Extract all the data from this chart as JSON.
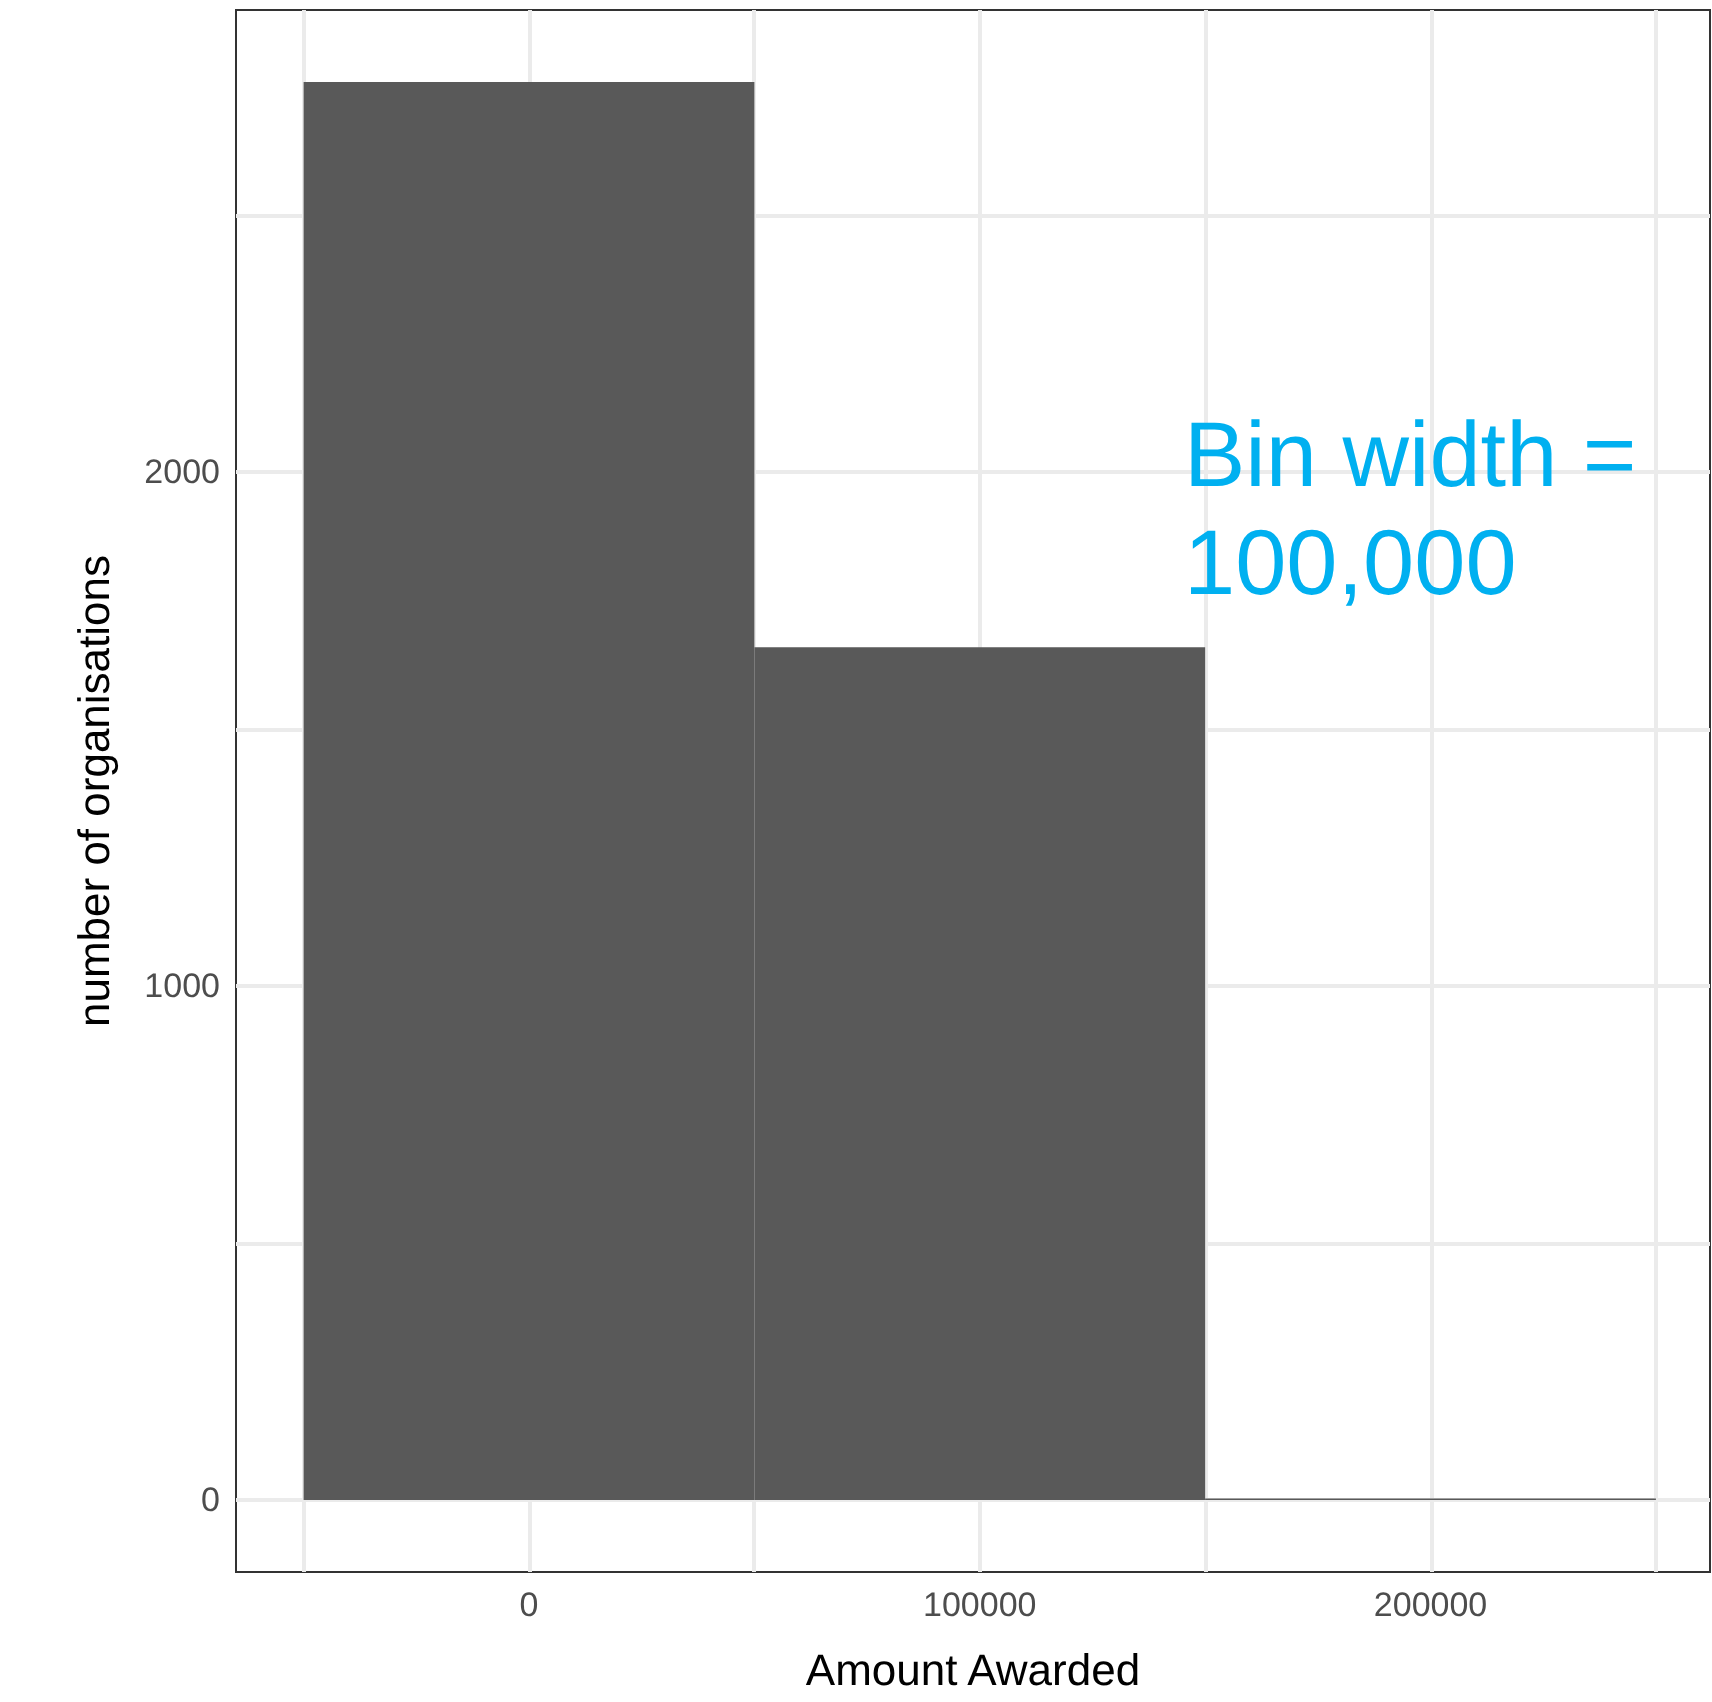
{
  "chart_data": {
    "type": "histogram",
    "xlabel": "Amount Awarded",
    "ylabel": "number of organisations",
    "bins": [
      -50000,
      50000,
      150000,
      250000
    ],
    "values": [
      2760,
      1660,
      3
    ],
    "color": "#595959",
    "xlim": [
      -65000,
      262000
    ],
    "ylim": [
      -140,
      2900
    ],
    "xticks": [
      {
        "value": -50000,
        "label": null
      },
      0,
      {
        "value": 50000,
        "label": null
      },
      100000,
      {
        "value": 150000,
        "label": null
      },
      200000,
      {
        "value": 250000,
        "label": null
      }
    ],
    "yticks": [
      0,
      {
        "value": 500,
        "label": null
      },
      1000,
      {
        "value": 1500,
        "label": null
      },
      2000,
      {
        "value": 2500,
        "label": null
      }
    ],
    "grid": true,
    "annotations": [
      "Bin width = 100,000"
    ]
  }
}
